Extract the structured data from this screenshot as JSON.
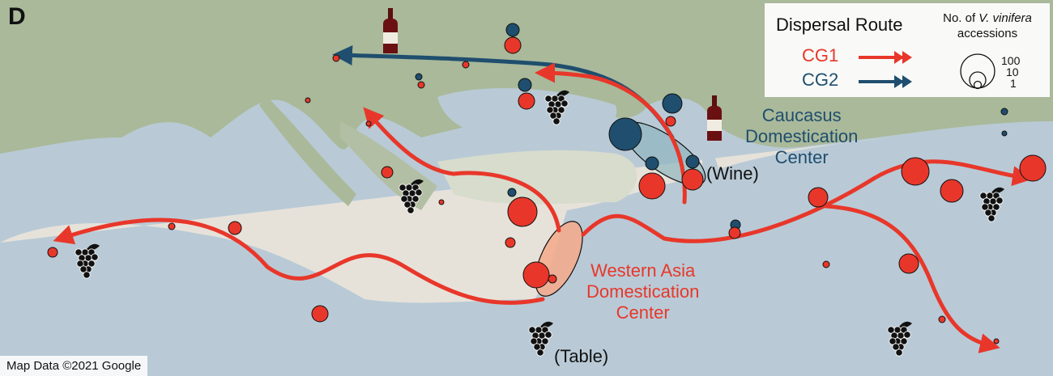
{
  "panel_label": "D",
  "legend": {
    "title": "Dispersal Route",
    "routes": [
      {
        "label": "CG1",
        "color": "#e8372a"
      },
      {
        "label": "CG2",
        "color": "#1f4e6e"
      }
    ],
    "size_title_prefix": "No. of ",
    "size_title_species": "V. vinifera",
    "size_title_suffix": "accessions",
    "size_values": [
      "100",
      "10",
      "1"
    ]
  },
  "labels": {
    "caucasus": [
      "Caucasus",
      "Domestication",
      "Center"
    ],
    "western_asia": [
      "Western Asia",
      "Domestication",
      "Center"
    ],
    "wine": "(Wine)",
    "table": "(Table)"
  },
  "icons": [
    "wine-bottle-icon",
    "grape-cluster-icon"
  ],
  "credit": "Map Data ©2021 Google",
  "colors": {
    "cg1": "#e8372a",
    "cg2": "#1f4e6e",
    "sea": "#b9cad6",
    "land_north": "#a9b99a",
    "land_south": "#e6e2da"
  }
}
